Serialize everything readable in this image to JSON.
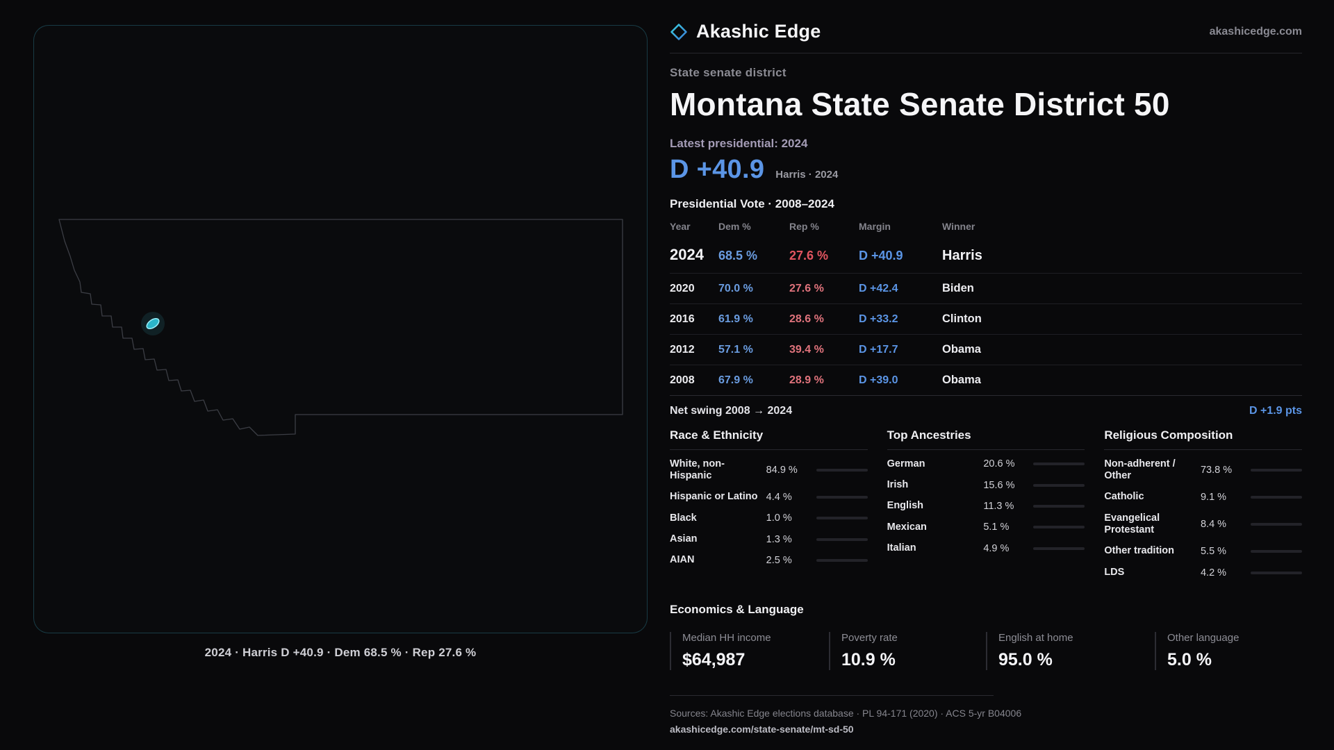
{
  "colors": {
    "dem": "#6a9ce0",
    "dem_bright": "#5b95e6",
    "rep": "#e0737c",
    "rep_bright": "#e25560",
    "accent_teal": "#3ec6d8"
  },
  "brand": {
    "name": "Akashic Edge",
    "site": "akashicedge.com"
  },
  "map": {
    "caption": "2024 · Harris D +40.9 · Dem 68.5 % · Rep 27.6 %"
  },
  "header": {
    "kicker": "State senate district",
    "title": "Montana State Senate District 50"
  },
  "latest": {
    "label": "Latest presidential: 2024",
    "margin": "D +40.9",
    "note": "Harris · 2024"
  },
  "vote": {
    "title": "Presidential Vote · 2008–2024",
    "columns": [
      "Year",
      "Dem %",
      "Rep %",
      "Margin",
      "Winner"
    ],
    "rows": [
      {
        "year": "2024",
        "dem": "68.5 %",
        "rep": "27.6 %",
        "margin": "D +40.9",
        "winner": "Harris"
      },
      {
        "year": "2020",
        "dem": "70.0 %",
        "rep": "27.6 %",
        "margin": "D +42.4",
        "winner": "Biden"
      },
      {
        "year": "2016",
        "dem": "61.9 %",
        "rep": "28.6 %",
        "margin": "D +33.2",
        "winner": "Clinton"
      },
      {
        "year": "2012",
        "dem": "57.1 %",
        "rep": "39.4 %",
        "margin": "D +17.7",
        "winner": "Obama"
      },
      {
        "year": "2008",
        "dem": "67.9 %",
        "rep": "28.9 %",
        "margin": "D +39.0",
        "winner": "Obama"
      }
    ]
  },
  "net_swing": {
    "label": "Net swing 2008 → 2024",
    "value": "D +1.9 pts"
  },
  "demographics": {
    "groups": [
      {
        "title": "Race & Ethnicity",
        "rows": [
          {
            "label": "White, non-Hispanic",
            "value": "84.9 %",
            "pct": 84.9,
            "color": "#c9c9ce"
          },
          {
            "label": "Hispanic or Latino",
            "value": "4.4 %",
            "pct": 4.4,
            "color": "#e5a23c"
          },
          {
            "label": "Black",
            "value": "1.0 %",
            "pct": 1.0,
            "color": "#9a9aa2"
          },
          {
            "label": "Asian",
            "value": "1.3 %",
            "pct": 1.3,
            "color": "#3ec6d8"
          },
          {
            "label": "AIAN",
            "value": "2.5 %",
            "pct": 2.5,
            "color": "#e08a4a"
          }
        ]
      },
      {
        "title": "Top Ancestries",
        "rows": [
          {
            "label": "German",
            "value": "20.6 %",
            "pct": 20.6,
            "color": "#c9c9ce"
          },
          {
            "label": "Irish",
            "value": "15.6 %",
            "pct": 15.6,
            "color": "#c9c9ce"
          },
          {
            "label": "English",
            "value": "11.3 %",
            "pct": 11.3,
            "color": "#c9c9ce"
          },
          {
            "label": "Mexican",
            "value": "5.1 %",
            "pct": 5.1,
            "color": "#e5a23c"
          },
          {
            "label": "Italian",
            "value": "4.9 %",
            "pct": 4.9,
            "color": "#c9c9ce"
          }
        ]
      },
      {
        "title": "Religious Composition",
        "rows": [
          {
            "label": "Non-adherent / Other",
            "value": "73.8 %",
            "pct": 73.8,
            "color": "#c9c9ce"
          },
          {
            "label": "Catholic",
            "value": "9.1 %",
            "pct": 9.1,
            "color": "#e5c33c"
          },
          {
            "label": "Evangelical Protestant",
            "value": "8.4 %",
            "pct": 8.4,
            "color": "#e4737c"
          },
          {
            "label": "Other tradition",
            "value": "5.5 %",
            "pct": 5.5,
            "color": "#9a9aa2"
          },
          {
            "label": "LDS",
            "value": "4.2 %",
            "pct": 4.2,
            "color": "#3ec6d8"
          }
        ]
      }
    ]
  },
  "economics": {
    "title": "Economics & Language",
    "stats": [
      {
        "label": "Median HH income",
        "value": "$64,987"
      },
      {
        "label": "Poverty rate",
        "value": "10.9 %"
      },
      {
        "label": "English at home",
        "value": "95.0 %"
      },
      {
        "label": "Other language",
        "value": "5.0 %"
      }
    ]
  },
  "footer": {
    "sources": "Sources: Akashic Edge elections database · PL 94-171 (2020) · ACS 5-yr B04006",
    "link": "akashicedge.com/state-senate/mt-sd-50"
  },
  "chart_data": [
    {
      "type": "table",
      "title": "Presidential Vote · 2008–2024",
      "columns": [
        "Year",
        "Dem %",
        "Rep %",
        "Margin",
        "Winner"
      ],
      "rows": [
        [
          "2024",
          68.5,
          27.6,
          "D +40.9",
          "Harris"
        ],
        [
          "2020",
          70.0,
          27.6,
          "D +42.4",
          "Biden"
        ],
        [
          "2016",
          61.9,
          28.6,
          "D +33.2",
          "Clinton"
        ],
        [
          "2012",
          57.1,
          39.4,
          "D +17.7",
          "Obama"
        ],
        [
          "2008",
          67.9,
          28.9,
          "D +39.0",
          "Obama"
        ]
      ],
      "annotations": [
        "Latest presidential: 2024 — D +40.9 (Harris · 2024)",
        "Net swing 2008 → 2024: D +1.9 pts"
      ]
    },
    {
      "type": "bar",
      "title": "Race & Ethnicity",
      "categories": [
        "White, non-Hispanic",
        "Hispanic or Latino",
        "Black",
        "Asian",
        "AIAN"
      ],
      "values": [
        84.9,
        4.4,
        1.0,
        1.3,
        2.5
      ],
      "xlabel": "",
      "ylabel": "%",
      "ylim": [
        0,
        100
      ]
    },
    {
      "type": "bar",
      "title": "Top Ancestries",
      "categories": [
        "German",
        "Irish",
        "English",
        "Mexican",
        "Italian"
      ],
      "values": [
        20.6,
        15.6,
        11.3,
        5.1,
        4.9
      ],
      "xlabel": "",
      "ylabel": "%",
      "ylim": [
        0,
        100
      ]
    },
    {
      "type": "bar",
      "title": "Religious Composition",
      "categories": [
        "Non-adherent / Other",
        "Catholic",
        "Evangelical Protestant",
        "Other tradition",
        "LDS"
      ],
      "values": [
        73.8,
        9.1,
        8.4,
        5.5,
        4.2
      ],
      "xlabel": "",
      "ylabel": "%",
      "ylim": [
        0,
        100
      ]
    },
    {
      "type": "table",
      "title": "Economics & Language",
      "columns": [
        "Median HH income",
        "Poverty rate",
        "English at home",
        "Other language"
      ],
      "rows": [
        [
          "$64,987",
          "10.9 %",
          "95.0 %",
          "5.0 %"
        ]
      ]
    }
  ]
}
